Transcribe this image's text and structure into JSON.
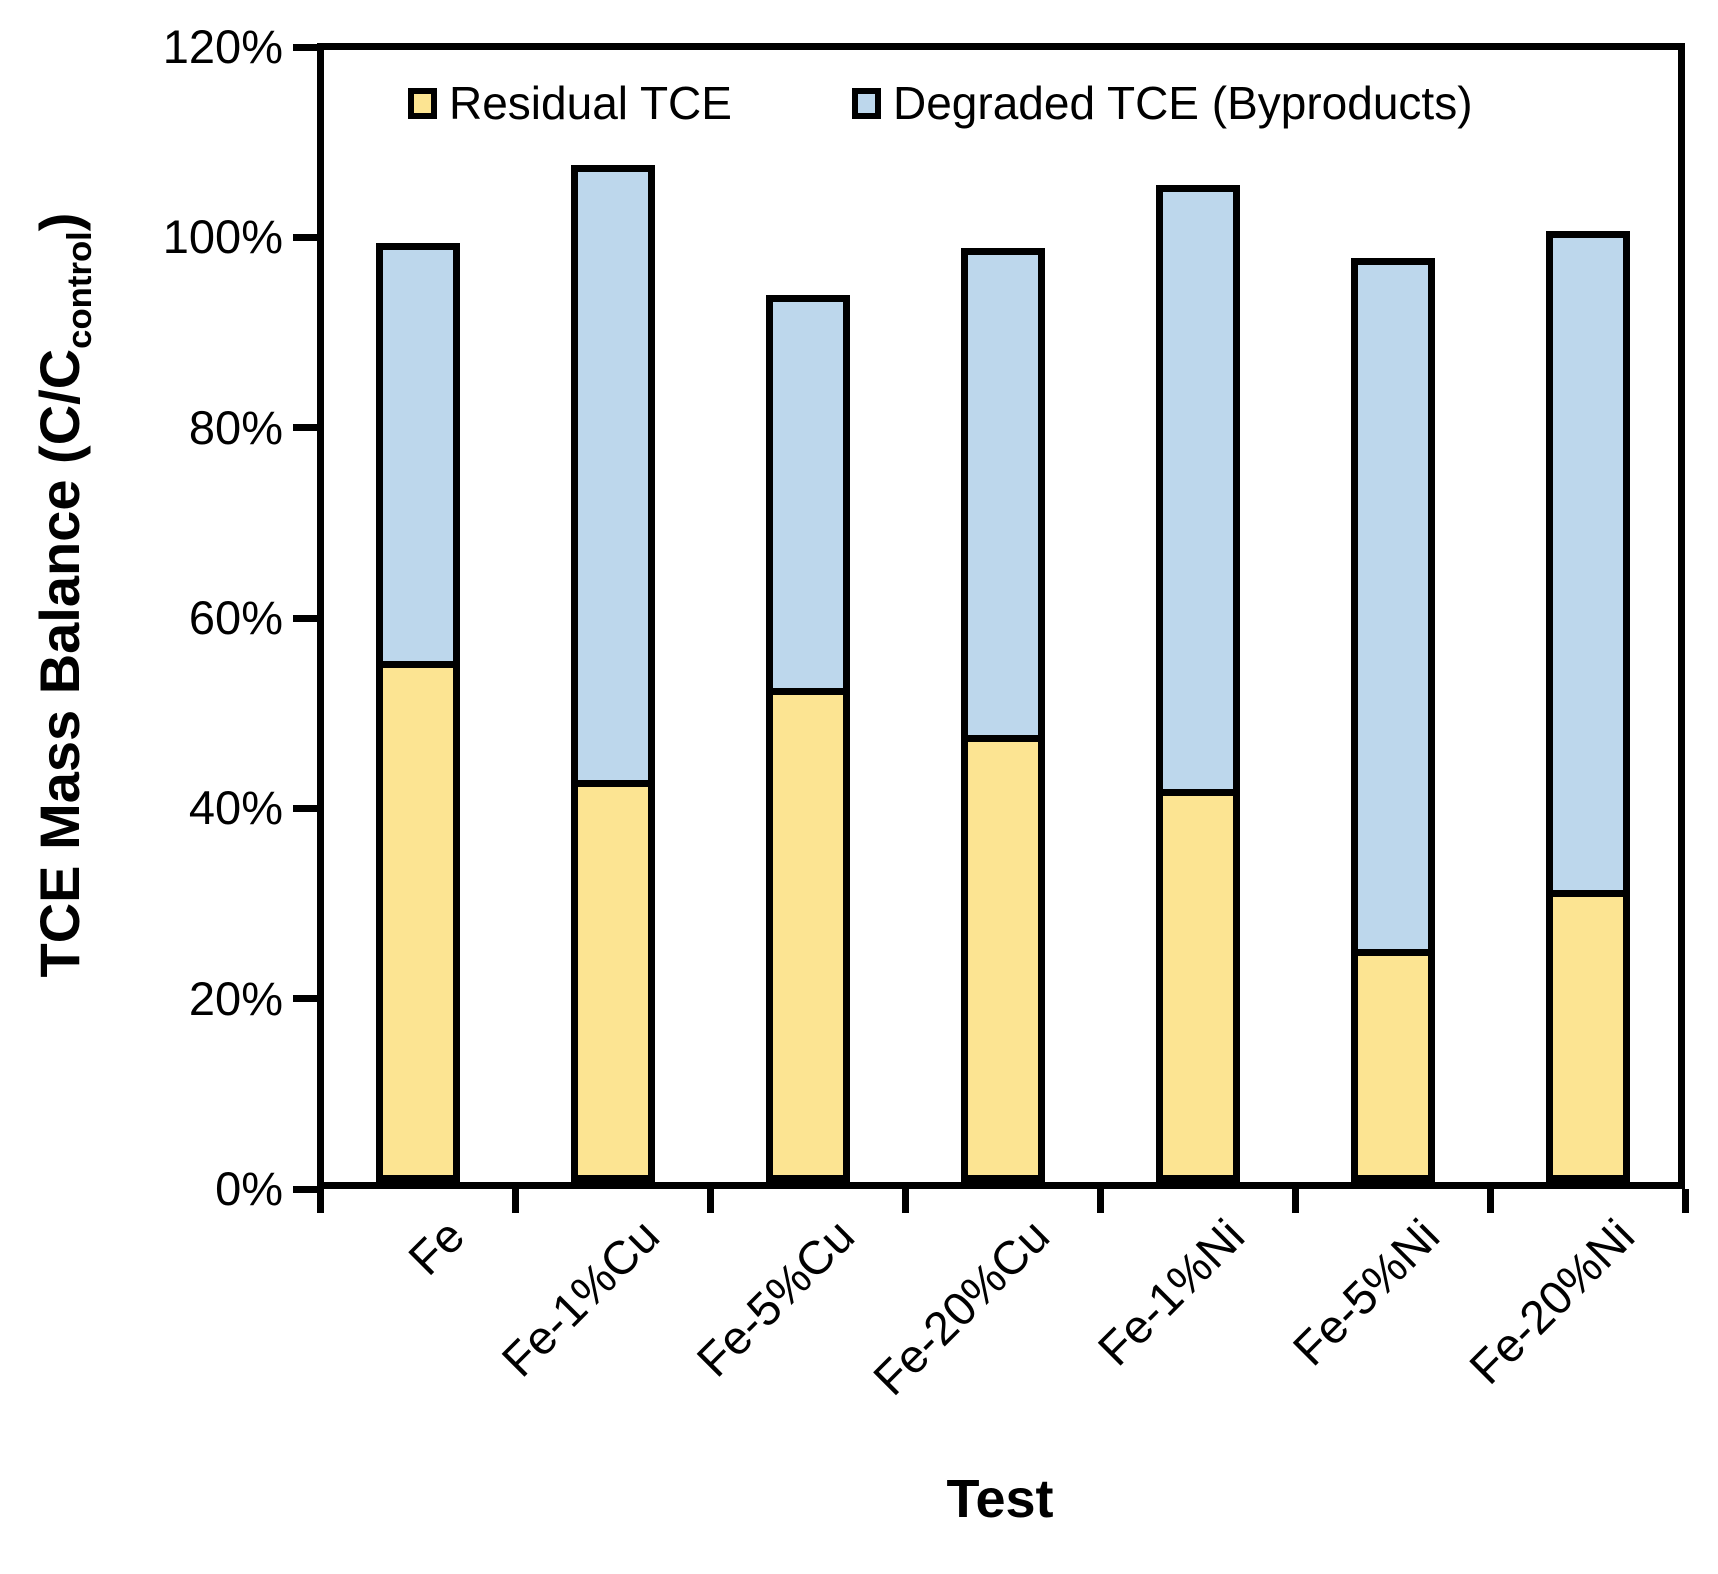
{
  "axes": {
    "y_title_main": "TCE Mass Balance (C/C",
    "y_title_sub": "control",
    "y_title_close": ")"
  },
  "chart_data": {
    "type": "bar",
    "stacked": true,
    "title": "",
    "xlabel": "Test",
    "ylabel": "TCE Mass Balance (C/C_control)",
    "categories": [
      "Fe",
      "Fe-1%Cu",
      "Fe-5%Cu",
      "Fe-20%Cu",
      "Fe-1%Ni",
      "Fe-5%Ni",
      "Fe-20%Ni"
    ],
    "series": [
      {
        "name": "Residual TCE",
        "color": "#FCE492",
        "values": [
          54.0,
          41.5,
          51.2,
          46.2,
          40.6,
          23.7,
          29.9
        ]
      },
      {
        "name": "Degraded TCE (Byproducts)",
        "color": "#BDD7EC",
        "values": [
          44.7,
          65.4,
          42.0,
          51.9,
          64.2,
          73.4,
          70.0
        ]
      }
    ],
    "stack_totals": [
      98.7,
      106.9,
      93.2,
      98.1,
      104.8,
      97.1,
      99.9
    ],
    "ylim": [
      0,
      120
    ],
    "ytick_step": 20,
    "ytick_labels": [
      "0%",
      "20%",
      "40%",
      "60%",
      "80%",
      "100%",
      "120%"
    ],
    "grid": false,
    "bar_outline_color": "#000000",
    "legend_position": "inside-top"
  }
}
